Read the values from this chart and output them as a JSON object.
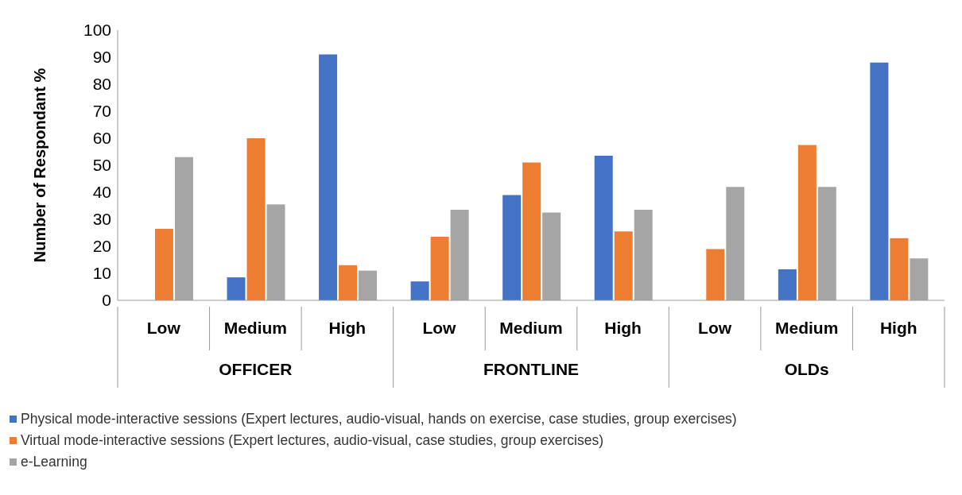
{
  "chart_data": {
    "type": "bar",
    "ylabel": "Number of Respondant %",
    "categories": [
      "Low",
      "Medium",
      "High",
      "Low",
      "Medium",
      "High",
      "Low",
      "Medium",
      "High"
    ],
    "annotations": [
      "OFFICER",
      "FRONTLINE",
      "OLDs"
    ],
    "series": [
      {
        "name": "Physical mode-interactive sessions (Expert lectures, audio-visual, hands on exercise, case studies, group exercises)",
        "color": "#4472c4",
        "values": [
          0,
          8.5,
          91,
          7,
          39,
          53.5,
          0,
          11.5,
          88
        ]
      },
      {
        "name": "Virtual mode-interactive sessions (Expert lectures, audio-visual, case studies, group exercises)",
        "color": "#ed7d31",
        "values": [
          26.5,
          60,
          13,
          23.5,
          51,
          25.5,
          19,
          57.5,
          23
        ]
      },
      {
        "name": "e-Learning",
        "color": "#a5a5a5",
        "values": [
          53,
          35.5,
          11,
          33.5,
          32.5,
          33.5,
          42,
          42,
          15.5
        ]
      }
    ],
    "ylim": [
      0,
      100
    ],
    "yticks": [
      0,
      10,
      20,
      30,
      40,
      50,
      60,
      70,
      80,
      90,
      100
    ],
    "grid": false,
    "legend": "bottom"
  }
}
